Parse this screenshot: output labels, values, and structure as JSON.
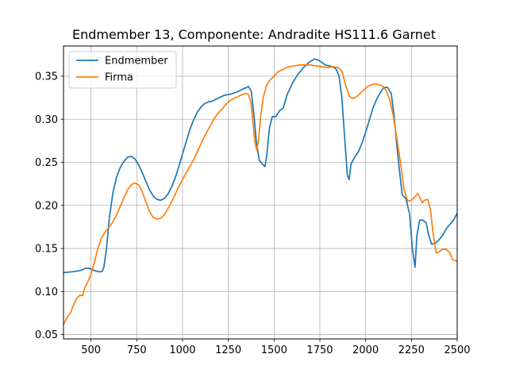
{
  "chart_data": {
    "type": "line",
    "title": "Endmember 13, Componente: Andradite HS111.6  Garnet",
    "xlabel": "",
    "ylabel": "",
    "xlim": [
      350,
      2500
    ],
    "ylim": [
      0.045,
      0.385
    ],
    "xticks": [
      500,
      750,
      1000,
      1250,
      1500,
      1750,
      2000,
      2250,
      2500
    ],
    "yticks": [
      0.05,
      0.1,
      0.15,
      0.2,
      0.25,
      0.3,
      0.35
    ],
    "ytick_labels": [
      "0.05",
      "0.10",
      "0.15",
      "0.20",
      "0.25",
      "0.30",
      "0.35"
    ],
    "grid": true,
    "legend_position": "top-left",
    "series": [
      {
        "name": "Endmember",
        "color": "#1f77b4",
        "points": [
          [
            350,
            0.122
          ],
          [
            400,
            0.123
          ],
          [
            430,
            0.124
          ],
          [
            450,
            0.125
          ],
          [
            470,
            0.127
          ],
          [
            490,
            0.127
          ],
          [
            510,
            0.125
          ],
          [
            540,
            0.123
          ],
          [
            560,
            0.123
          ],
          [
            570,
            0.128
          ],
          [
            585,
            0.15
          ],
          [
            600,
            0.185
          ],
          [
            620,
            0.215
          ],
          [
            640,
            0.233
          ],
          [
            660,
            0.244
          ],
          [
            680,
            0.251
          ],
          [
            700,
            0.256
          ],
          [
            720,
            0.257
          ],
          [
            740,
            0.254
          ],
          [
            760,
            0.247
          ],
          [
            780,
            0.238
          ],
          [
            800,
            0.228
          ],
          [
            820,
            0.218
          ],
          [
            840,
            0.211
          ],
          [
            860,
            0.207
          ],
          [
            880,
            0.206
          ],
          [
            900,
            0.208
          ],
          [
            920,
            0.213
          ],
          [
            940,
            0.221
          ],
          [
            960,
            0.232
          ],
          [
            980,
            0.245
          ],
          [
            1000,
            0.26
          ],
          [
            1020,
            0.274
          ],
          [
            1040,
            0.288
          ],
          [
            1060,
            0.299
          ],
          [
            1080,
            0.308
          ],
          [
            1100,
            0.314
          ],
          [
            1120,
            0.318
          ],
          [
            1140,
            0.32
          ],
          [
            1160,
            0.321
          ],
          [
            1180,
            0.323
          ],
          [
            1200,
            0.325
          ],
          [
            1230,
            0.328
          ],
          [
            1260,
            0.329
          ],
          [
            1290,
            0.331
          ],
          [
            1320,
            0.334
          ],
          [
            1340,
            0.336
          ],
          [
            1360,
            0.338
          ],
          [
            1375,
            0.333
          ],
          [
            1390,
            0.305
          ],
          [
            1405,
            0.27
          ],
          [
            1420,
            0.252
          ],
          [
            1440,
            0.247
          ],
          [
            1450,
            0.245
          ],
          [
            1460,
            0.258
          ],
          [
            1475,
            0.29
          ],
          [
            1490,
            0.303
          ],
          [
            1510,
            0.303
          ],
          [
            1530,
            0.31
          ],
          [
            1550,
            0.313
          ],
          [
            1570,
            0.328
          ],
          [
            1600,
            0.342
          ],
          [
            1630,
            0.352
          ],
          [
            1660,
            0.36
          ],
          [
            1690,
            0.366
          ],
          [
            1720,
            0.37
          ],
          [
            1740,
            0.369
          ],
          [
            1760,
            0.366
          ],
          [
            1780,
            0.363
          ],
          [
            1800,
            0.362
          ],
          [
            1820,
            0.361
          ],
          [
            1840,
            0.358
          ],
          [
            1855,
            0.35
          ],
          [
            1870,
            0.325
          ],
          [
            1885,
            0.28
          ],
          [
            1900,
            0.235
          ],
          [
            1910,
            0.23
          ],
          [
            1920,
            0.248
          ],
          [
            1940,
            0.256
          ],
          [
            1960,
            0.262
          ],
          [
            1980,
            0.272
          ],
          [
            2000,
            0.285
          ],
          [
            2020,
            0.299
          ],
          [
            2040,
            0.313
          ],
          [
            2060,
            0.323
          ],
          [
            2080,
            0.331
          ],
          [
            2100,
            0.337
          ],
          [
            2120,
            0.337
          ],
          [
            2140,
            0.33
          ],
          [
            2155,
            0.305
          ],
          [
            2170,
            0.27
          ],
          [
            2185,
            0.24
          ],
          [
            2200,
            0.212
          ],
          [
            2220,
            0.208
          ],
          [
            2240,
            0.19
          ],
          [
            2255,
            0.15
          ],
          [
            2270,
            0.128
          ],
          [
            2280,
            0.165
          ],
          [
            2295,
            0.183
          ],
          [
            2310,
            0.183
          ],
          [
            2330,
            0.18
          ],
          [
            2345,
            0.165
          ],
          [
            2360,
            0.155
          ],
          [
            2380,
            0.156
          ],
          [
            2400,
            0.16
          ],
          [
            2420,
            0.165
          ],
          [
            2440,
            0.173
          ],
          [
            2460,
            0.178
          ],
          [
            2480,
            0.183
          ],
          [
            2500,
            0.191
          ]
        ]
      },
      {
        "name": "Firma",
        "color": "#ff7f0e",
        "points": [
          [
            350,
            0.062
          ],
          [
            370,
            0.07
          ],
          [
            390,
            0.076
          ],
          [
            400,
            0.082
          ],
          [
            420,
            0.091
          ],
          [
            440,
            0.096
          ],
          [
            455,
            0.095
          ],
          [
            465,
            0.104
          ],
          [
            480,
            0.11
          ],
          [
            500,
            0.12
          ],
          [
            520,
            0.135
          ],
          [
            540,
            0.152
          ],
          [
            560,
            0.163
          ],
          [
            580,
            0.17
          ],
          [
            600,
            0.175
          ],
          [
            620,
            0.181
          ],
          [
            640,
            0.189
          ],
          [
            660,
            0.199
          ],
          [
            680,
            0.209
          ],
          [
            700,
            0.218
          ],
          [
            720,
            0.224
          ],
          [
            740,
            0.226
          ],
          [
            760,
            0.224
          ],
          [
            780,
            0.216
          ],
          [
            800,
            0.204
          ],
          [
            820,
            0.193
          ],
          [
            840,
            0.186
          ],
          [
            860,
            0.184
          ],
          [
            880,
            0.185
          ],
          [
            900,
            0.189
          ],
          [
            920,
            0.196
          ],
          [
            940,
            0.204
          ],
          [
            960,
            0.213
          ],
          [
            980,
            0.222
          ],
          [
            1000,
            0.23
          ],
          [
            1020,
            0.238
          ],
          [
            1040,
            0.245
          ],
          [
            1060,
            0.253
          ],
          [
            1080,
            0.262
          ],
          [
            1100,
            0.271
          ],
          [
            1120,
            0.28
          ],
          [
            1140,
            0.288
          ],
          [
            1160,
            0.296
          ],
          [
            1180,
            0.303
          ],
          [
            1200,
            0.308
          ],
          [
            1220,
            0.313
          ],
          [
            1240,
            0.318
          ],
          [
            1260,
            0.322
          ],
          [
            1280,
            0.324
          ],
          [
            1300,
            0.326
          ],
          [
            1320,
            0.328
          ],
          [
            1340,
            0.33
          ],
          [
            1360,
            0.329
          ],
          [
            1375,
            0.318
          ],
          [
            1385,
            0.295
          ],
          [
            1395,
            0.275
          ],
          [
            1405,
            0.264
          ],
          [
            1415,
            0.275
          ],
          [
            1425,
            0.3
          ],
          [
            1440,
            0.325
          ],
          [
            1460,
            0.34
          ],
          [
            1480,
            0.346
          ],
          [
            1500,
            0.35
          ],
          [
            1520,
            0.355
          ],
          [
            1550,
            0.358
          ],
          [
            1580,
            0.361
          ],
          [
            1610,
            0.362
          ],
          [
            1640,
            0.363
          ],
          [
            1670,
            0.363
          ],
          [
            1700,
            0.363
          ],
          [
            1730,
            0.362
          ],
          [
            1760,
            0.361
          ],
          [
            1790,
            0.36
          ],
          [
            1820,
            0.361
          ],
          [
            1850,
            0.36
          ],
          [
            1870,
            0.356
          ],
          [
            1890,
            0.34
          ],
          [
            1910,
            0.327
          ],
          [
            1930,
            0.324
          ],
          [
            1950,
            0.326
          ],
          [
            1970,
            0.33
          ],
          [
            1990,
            0.334
          ],
          [
            2010,
            0.338
          ],
          [
            2030,
            0.34
          ],
          [
            2050,
            0.341
          ],
          [
            2070,
            0.34
          ],
          [
            2090,
            0.339
          ],
          [
            2110,
            0.334
          ],
          [
            2130,
            0.324
          ],
          [
            2150,
            0.305
          ],
          [
            2170,
            0.278
          ],
          [
            2190,
            0.25
          ],
          [
            2210,
            0.218
          ],
          [
            2230,
            0.205
          ],
          [
            2250,
            0.206
          ],
          [
            2270,
            0.21
          ],
          [
            2285,
            0.214
          ],
          [
            2300,
            0.207
          ],
          [
            2310,
            0.203
          ],
          [
            2320,
            0.206
          ],
          [
            2340,
            0.207
          ],
          [
            2355,
            0.194
          ],
          [
            2370,
            0.165
          ],
          [
            2385,
            0.145
          ],
          [
            2400,
            0.146
          ],
          [
            2420,
            0.149
          ],
          [
            2440,
            0.149
          ],
          [
            2460,
            0.145
          ],
          [
            2475,
            0.137
          ],
          [
            2490,
            0.136
          ],
          [
            2500,
            0.135
          ]
        ]
      }
    ]
  }
}
